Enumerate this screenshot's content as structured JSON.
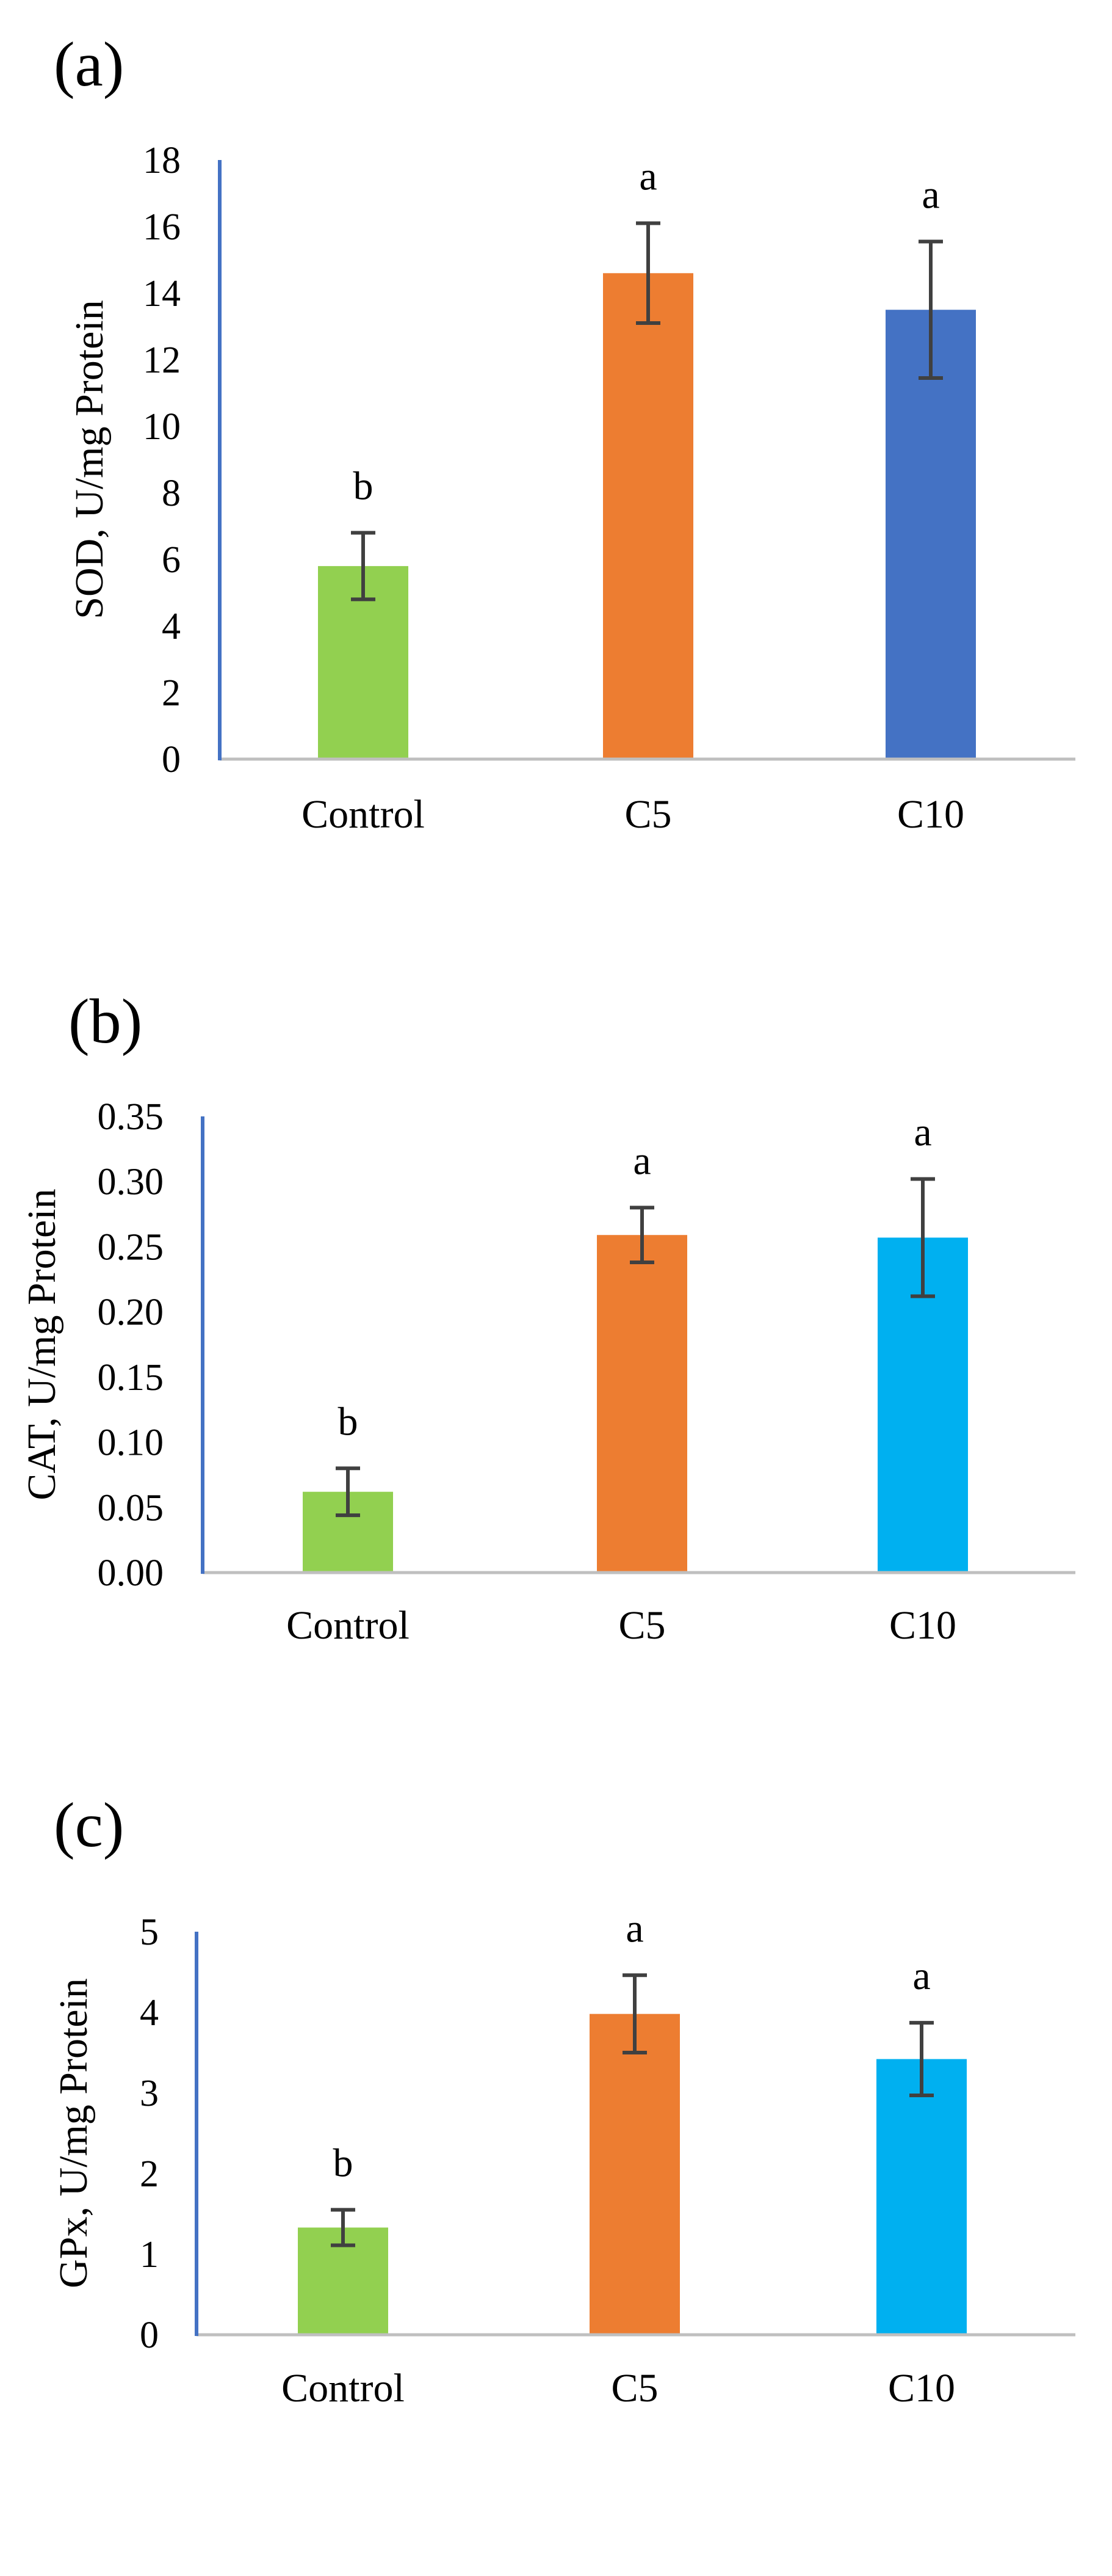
{
  "chart_data": [
    {
      "type": "bar",
      "panel_label": "(a)",
      "ylabel": "SOD, U/mg Protein",
      "xlabel": "",
      "categories": [
        "Control",
        "C5",
        "C10"
      ],
      "values": [
        5.8,
        14.6,
        13.5
      ],
      "errors": [
        1.0,
        1.5,
        2.05
      ],
      "sig_letters": [
        "b",
        "a",
        "a"
      ],
      "bar_colors": [
        "#92d050",
        "#ed7d31",
        "#4472c4"
      ],
      "ylim": [
        0,
        18
      ],
      "yticks": [
        0,
        2,
        4,
        6,
        8,
        10,
        12,
        14,
        16,
        18
      ],
      "ytick_labels": [
        "0",
        "2",
        "4",
        "6",
        "8",
        "10",
        "12",
        "14",
        "16",
        "18"
      ],
      "grid": false
    },
    {
      "type": "bar",
      "panel_label": "(b)",
      "ylabel": "CAT, U/mg Protein",
      "xlabel": "",
      "categories": [
        "Control",
        "C5",
        "C10"
      ],
      "values": [
        0.062,
        0.259,
        0.257
      ],
      "errors": [
        0.018,
        0.021,
        0.045
      ],
      "sig_letters": [
        "b",
        "a",
        "a"
      ],
      "bar_colors": [
        "#92d050",
        "#ed7d31",
        "#00b0f0"
      ],
      "ylim": [
        0,
        0.35
      ],
      "yticks": [
        0,
        0.05,
        0.1,
        0.15,
        0.2,
        0.25,
        0.3,
        0.35
      ],
      "ytick_labels": [
        "0.00",
        "0.05",
        "0.10",
        "0.15",
        "0.20",
        "0.25",
        "0.30",
        "0.35"
      ],
      "grid": false
    },
    {
      "type": "bar",
      "panel_label": "(c)",
      "ylabel": "GPx, U/mg Protein",
      "xlabel": "",
      "categories": [
        "Control",
        "C5",
        "C10"
      ],
      "values": [
        1.33,
        3.98,
        3.42
      ],
      "errors": [
        0.22,
        0.48,
        0.45
      ],
      "sig_letters": [
        "b",
        "a",
        "a"
      ],
      "bar_colors": [
        "#92d050",
        "#ed7d31",
        "#00b0f0"
      ],
      "ylim": [
        0,
        5
      ],
      "yticks": [
        0,
        1,
        2,
        3,
        4,
        5
      ],
      "ytick_labels": [
        "0",
        "1",
        "2",
        "3",
        "4",
        "5"
      ],
      "grid": false
    }
  ],
  "colors": {
    "y_axis": "#4472c4",
    "x_axis": "#bfbfbf",
    "error_bar": "#404040"
  }
}
